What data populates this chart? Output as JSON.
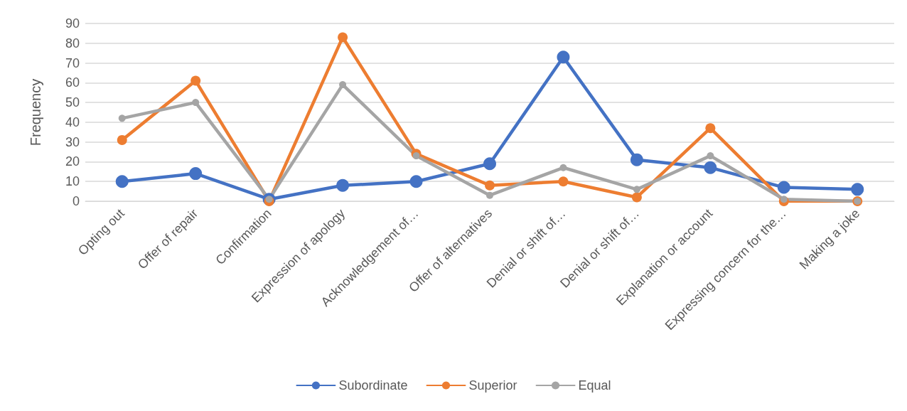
{
  "chart_data": {
    "type": "line",
    "ylabel": "Frequency",
    "categories": [
      "Opting out",
      "Offer of repair",
      "Confirmation",
      "Expression of apology",
      "Acknowledgement of…",
      "Offer of alternatives",
      "Denial or shift of…",
      "Denial or shift of…",
      "Explanation or account",
      "Expressing concern for the…",
      "Making a joke"
    ],
    "series": [
      {
        "name": "Subordinate",
        "color": "#4472c4",
        "values": [
          10,
          14,
          1,
          8,
          10,
          19,
          73,
          21,
          17,
          7,
          6
        ]
      },
      {
        "name": "Superior",
        "color": "#ed7d31",
        "values": [
          31,
          61,
          0,
          83,
          24,
          8,
          10,
          2,
          37,
          0,
          0
        ]
      },
      {
        "name": "Equal",
        "color": "#a5a5a5",
        "values": [
          42,
          50,
          1,
          59,
          23,
          3,
          17,
          6,
          23,
          1,
          0
        ]
      }
    ],
    "ylim": [
      0,
      90
    ],
    "yticks": [
      0,
      10,
      20,
      30,
      40,
      50,
      60,
      70,
      80,
      90
    ],
    "grid": "y",
    "legend": "bottom",
    "marker": "circle",
    "line_style": "solid"
  }
}
